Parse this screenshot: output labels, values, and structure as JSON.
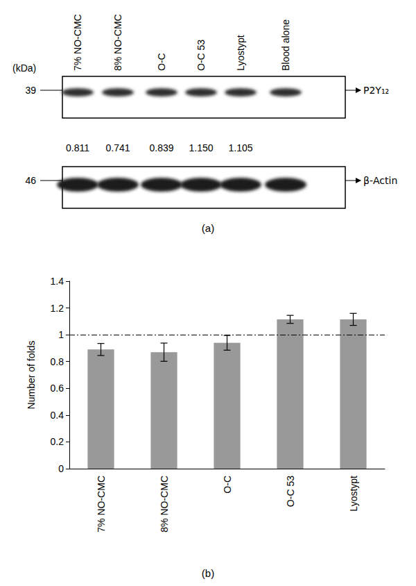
{
  "blot": {
    "panel_label": "(a)",
    "unit_label": "(kDa)",
    "lanes": [
      "7% NO-CMC",
      "8% NO-CMC",
      "O-C",
      "O-C 53",
      "Lyostypt",
      "Blood alone"
    ],
    "rows": [
      {
        "marker": 39,
        "name": "P2Y₁₂",
        "ratios": [
          "0.811",
          "0.741",
          "0.839",
          "1.150",
          "1.105",
          null
        ]
      },
      {
        "marker": 46,
        "name": "β-Actin",
        "ratios": null
      }
    ]
  },
  "chart_data": {
    "type": "bar",
    "panel_label": "(b)",
    "y_label": "Number of folds",
    "categories": [
      "7% NO-CMC",
      "8% NO-CMC",
      "O-C",
      "O-C 53",
      "Lyostypt"
    ],
    "values": [
      0.89,
      0.87,
      0.94,
      1.115,
      1.115
    ],
    "errors": [
      0.045,
      0.068,
      0.055,
      0.03,
      0.045
    ],
    "color": "#999999",
    "reference_line": 1,
    "ylim": [
      0,
      1.4
    ],
    "yticks": [
      0,
      0.2,
      0.4,
      0.6,
      0.8,
      1,
      1.2,
      1.4
    ],
    "grid": false
  }
}
